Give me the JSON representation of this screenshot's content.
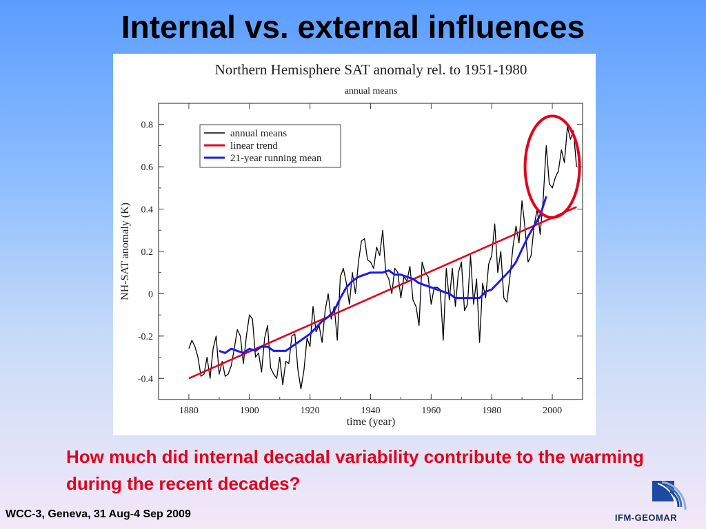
{
  "slide": {
    "title": "Internal vs. external influences",
    "question": "How much did internal decadal variability contribute to the warming during the recent decades?",
    "footer": "WCC-3, Geneva, 31 Aug-4 Sep 2009",
    "logo_text": "IFM-GEOMAR",
    "logo_icon": "ifm-geomar-wave-icon"
  },
  "chart_data": {
    "type": "line",
    "title": "Northern Hemisphere SAT anomaly rel. to 1951-1980",
    "subtitle": "annual means",
    "xlabel": "time (year)",
    "ylabel": "NH-SAT anomaly (K)",
    "xlim": [
      1870,
      2010
    ],
    "ylim": [
      -0.5,
      0.9
    ],
    "xticks": [
      1880,
      1900,
      1920,
      1940,
      1960,
      1980,
      2000
    ],
    "yticks": [
      -0.4,
      -0.2,
      0,
      0.2,
      0.4,
      0.6,
      0.8
    ],
    "ytick_labels": [
      "-0.4",
      "-0.2",
      "0",
      "0.2",
      "0.4",
      "0.6",
      "0.8"
    ],
    "grid": false,
    "legend_position": "top-left",
    "colors": {
      "annual": "#000000",
      "trend": "#e3001b",
      "running": "#1a1aee",
      "highlight": "#e3001b"
    },
    "series": [
      {
        "name": "annual means",
        "x": [
          1880,
          1881,
          1882,
          1883,
          1884,
          1885,
          1886,
          1887,
          1888,
          1889,
          1890,
          1891,
          1892,
          1893,
          1894,
          1895,
          1896,
          1897,
          1898,
          1899,
          1900,
          1901,
          1902,
          1903,
          1904,
          1905,
          1906,
          1907,
          1908,
          1909,
          1910,
          1911,
          1912,
          1913,
          1914,
          1915,
          1916,
          1917,
          1918,
          1919,
          1920,
          1921,
          1922,
          1923,
          1924,
          1925,
          1926,
          1927,
          1928,
          1929,
          1930,
          1931,
          1932,
          1933,
          1934,
          1935,
          1936,
          1937,
          1938,
          1939,
          1940,
          1941,
          1942,
          1943,
          1944,
          1945,
          1946,
          1947,
          1948,
          1949,
          1950,
          1951,
          1952,
          1953,
          1954,
          1955,
          1956,
          1957,
          1958,
          1959,
          1960,
          1961,
          1962,
          1963,
          1964,
          1965,
          1966,
          1967,
          1968,
          1969,
          1970,
          1971,
          1972,
          1973,
          1974,
          1975,
          1976,
          1977,
          1978,
          1979,
          1980,
          1981,
          1982,
          1983,
          1984,
          1985,
          1986,
          1987,
          1988,
          1989,
          1990,
          1991,
          1992,
          1993,
          1994,
          1995,
          1996,
          1997,
          1998,
          1999,
          2000,
          2001,
          2002,
          2003,
          2004,
          2005,
          2006,
          2007,
          2008
        ],
        "values": [
          -0.26,
          -0.22,
          -0.25,
          -0.3,
          -0.39,
          -0.38,
          -0.3,
          -0.4,
          -0.26,
          -0.2,
          -0.38,
          -0.32,
          -0.39,
          -0.38,
          -0.34,
          -0.26,
          -0.17,
          -0.2,
          -0.33,
          -0.2,
          -0.1,
          -0.12,
          -0.3,
          -0.28,
          -0.37,
          -0.21,
          -0.15,
          -0.35,
          -0.38,
          -0.4,
          -0.3,
          -0.43,
          -0.32,
          -0.33,
          -0.2,
          -0.19,
          -0.36,
          -0.45,
          -0.36,
          -0.21,
          -0.25,
          -0.06,
          -0.18,
          -0.15,
          -0.23,
          -0.08,
          0.0,
          -0.12,
          -0.06,
          -0.22,
          0.08,
          0.12,
          0.05,
          -0.05,
          0.1,
          0.0,
          0.15,
          0.25,
          0.26,
          0.16,
          0.15,
          0.12,
          0.22,
          0.18,
          0.3,
          0.1,
          0.07,
          0.0,
          0.12,
          0.1,
          -0.02,
          0.08,
          0.06,
          0.13,
          -0.03,
          -0.06,
          -0.15,
          0.15,
          0.1,
          0.08,
          -0.05,
          0.03,
          0.03,
          0.02,
          -0.22,
          0.12,
          -0.03,
          0.12,
          -0.06,
          0.1,
          0.15,
          -0.08,
          -0.05,
          0.18,
          -0.05,
          0.07,
          -0.23,
          0.05,
          -0.02,
          0.14,
          0.18,
          0.33,
          0.1,
          0.2,
          -0.02,
          -0.04,
          0.08,
          0.22,
          0.32,
          0.24,
          0.44,
          0.31,
          0.15,
          0.18,
          0.32,
          0.4,
          0.28,
          0.45,
          0.7,
          0.52,
          0.5,
          0.55,
          0.58,
          0.68,
          0.62,
          0.79,
          0.73,
          0.77,
          0.6
        ]
      },
      {
        "name": "linear trend",
        "x": [
          1880,
          2008
        ],
        "values": [
          -0.4,
          0.41
        ]
      },
      {
        "name": "21-year running mean",
        "x": [
          1890,
          1892,
          1894,
          1896,
          1898,
          1900,
          1902,
          1904,
          1906,
          1908,
          1910,
          1912,
          1914,
          1916,
          1918,
          1920,
          1922,
          1924,
          1926,
          1928,
          1930,
          1932,
          1934,
          1936,
          1938,
          1940,
          1942,
          1944,
          1946,
          1948,
          1950,
          1952,
          1954,
          1956,
          1958,
          1960,
          1962,
          1964,
          1966,
          1968,
          1970,
          1972,
          1974,
          1976,
          1978,
          1980,
          1982,
          1984,
          1986,
          1988,
          1990,
          1992,
          1994,
          1996,
          1998
        ],
        "values": [
          -0.27,
          -0.28,
          -0.26,
          -0.27,
          -0.28,
          -0.26,
          -0.27,
          -0.25,
          -0.25,
          -0.27,
          -0.27,
          -0.27,
          -0.25,
          -0.23,
          -0.21,
          -0.19,
          -0.16,
          -0.13,
          -0.11,
          -0.08,
          -0.02,
          0.03,
          0.06,
          0.08,
          0.09,
          0.1,
          0.1,
          0.1,
          0.11,
          0.09,
          0.09,
          0.08,
          0.07,
          0.05,
          0.04,
          0.03,
          0.02,
          0.01,
          0.0,
          -0.02,
          -0.02,
          -0.02,
          -0.02,
          -0.02,
          0.01,
          0.02,
          0.05,
          0.08,
          0.11,
          0.15,
          0.21,
          0.27,
          0.32,
          0.37,
          0.46
        ]
      }
    ],
    "annotation": {
      "type": "ellipse",
      "center": [
        2000,
        0.6
      ],
      "radius_x": 9,
      "radius_y": 0.24,
      "label": ""
    }
  }
}
